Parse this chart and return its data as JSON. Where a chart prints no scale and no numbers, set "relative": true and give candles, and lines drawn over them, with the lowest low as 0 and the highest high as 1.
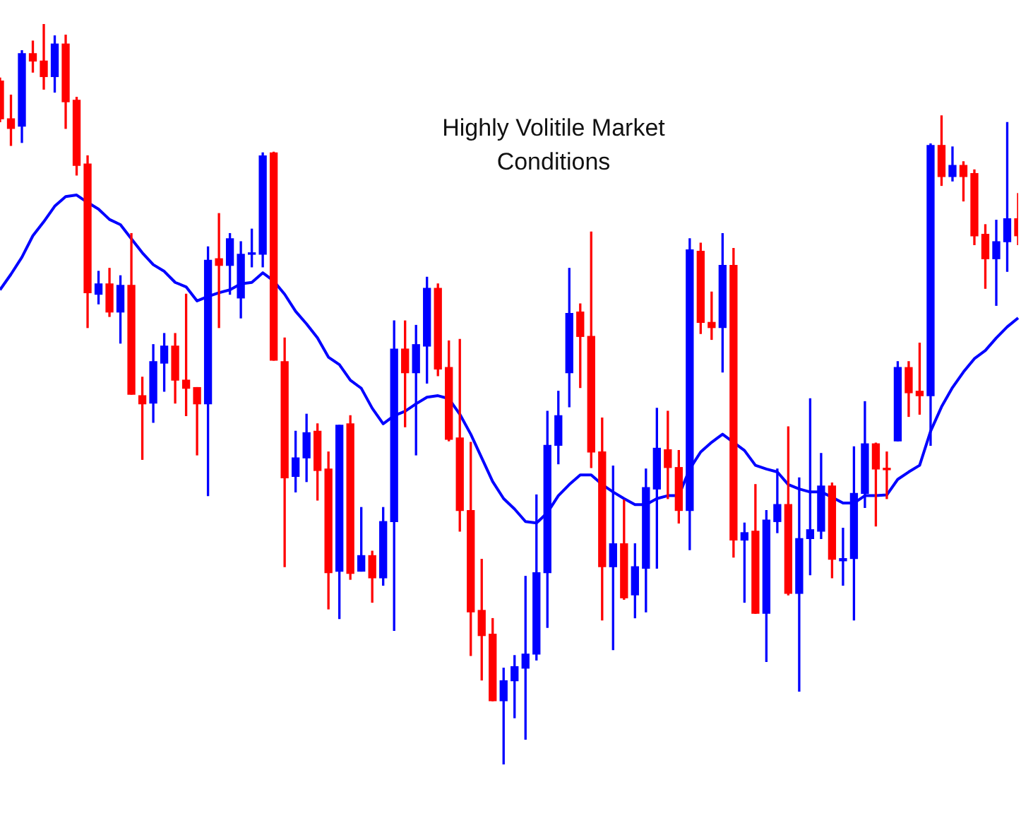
{
  "chart_data": {
    "type": "candlestick",
    "relative": true,
    "categories": [
      null,
      null,
      null,
      null,
      null,
      null,
      null,
      null,
      null,
      null,
      null,
      null,
      null,
      null,
      null,
      null,
      null,
      null,
      null,
      null,
      null,
      null,
      null,
      null,
      null,
      null,
      null,
      null,
      null,
      null,
      null,
      null,
      null,
      null,
      null,
      null,
      null,
      null,
      null,
      null,
      null,
      null,
      null,
      null,
      null,
      null,
      null,
      null,
      null,
      null,
      null,
      null,
      null,
      null,
      null,
      null,
      null,
      null,
      null,
      null,
      null,
      null,
      null,
      null,
      null,
      null,
      null,
      null,
      null,
      null,
      null,
      null,
      null,
      null,
      null,
      null,
      null,
      null,
      null,
      null,
      null,
      null,
      null,
      null,
      null,
      null,
      null,
      null,
      null,
      null,
      null,
      null,
      null,
      null
    ],
    "annotations": [
      "Highly Volitile Market Conditions"
    ],
    "ohlc": [
      [
        0.923,
        0.927,
        0.868,
        0.872
      ],
      [
        0.872,
        0.904,
        0.836,
        0.859
      ],
      [
        0.862,
        0.964,
        0.84,
        0.96
      ],
      [
        0.96,
        0.977,
        0.935,
        0.95
      ],
      [
        0.95,
        1,
        0.912,
        0.929
      ],
      [
        0.929,
        0.984,
        0.908,
        0.973
      ],
      [
        0.973,
        0.985,
        0.859,
        0.895
      ],
      [
        0.897,
        0.901,
        0.796,
        0.809
      ],
      [
        0.811,
        0.822,
        0.59,
        0.637
      ],
      [
        0.635,
        0.666,
        0.622,
        0.649
      ],
      [
        0.649,
        0.67,
        0.605,
        0.611
      ],
      [
        0.611,
        0.66,
        0.569,
        0.647
      ],
      [
        0.647,
        0.717,
        0.5,
        0.5
      ],
      [
        0.498,
        0.523,
        0.412,
        0.487
      ],
      [
        0.488,
        0.567,
        0.462,
        0.544
      ],
      [
        0.542,
        0.582,
        0.504,
        0.565
      ],
      [
        0.565,
        0.582,
        0.488,
        0.519
      ],
      [
        0.519,
        0.635,
        0.471,
        0.508
      ],
      [
        0.509,
        0.509,
        0.418,
        0.487
      ],
      [
        0.487,
        0.699,
        0.363,
        0.681
      ],
      [
        0.683,
        0.744,
        0.59,
        0.674
      ],
      [
        0.674,
        0.717,
        0.635,
        0.71
      ],
      [
        0.63,
        0.706,
        0.603,
        0.689
      ],
      [
        0.689,
        0.723,
        0.672,
        0.691
      ],
      [
        0.689,
        0.826,
        0.672,
        0.822
      ],
      [
        0.826,
        0.827,
        0.546,
        0.546
      ],
      [
        0.544,
        0.576,
        0.267,
        0.387
      ],
      [
        0.389,
        0.45,
        0.368,
        0.414
      ],
      [
        0.414,
        0.473,
        0.382,
        0.448
      ],
      [
        0.45,
        0.46,
        0.357,
        0.397
      ],
      [
        0.399,
        0.422,
        0.21,
        0.259
      ],
      [
        0.261,
        0.458,
        0.197,
        0.458
      ],
      [
        0.46,
        0.471,
        0.25,
        0.258
      ],
      [
        0.261,
        0.347,
        0.261,
        0.282
      ],
      [
        0.282,
        0.288,
        0.219,
        0.252
      ],
      [
        0.252,
        0.347,
        0.242,
        0.328
      ],
      [
        0.328,
        0.599,
        0.181,
        0.561
      ],
      [
        0.561,
        0.599,
        0.456,
        0.529
      ],
      [
        0.529,
        0.593,
        0.418,
        0.567
      ],
      [
        0.565,
        0.658,
        0.515,
        0.643
      ],
      [
        0.643,
        0.649,
        0.525,
        0.534
      ],
      [
        0.536,
        0.572,
        0.437,
        0.439
      ],
      [
        0.441,
        0.574,
        0.315,
        0.343
      ],
      [
        0.343,
        0.435,
        0.147,
        0.206
      ],
      [
        0.208,
        0.277,
        0.114,
        0.174
      ],
      [
        0.176,
        0.197,
        0.086,
        0.086
      ],
      [
        0.086,
        0.13,
        0,
        0.113
      ],
      [
        0.113,
        0.147,
        0.063,
        0.132
      ],
      [
        0.13,
        0.254,
        0.034,
        0.149
      ],
      [
        0.149,
        0.364,
        0.141,
        0.259
      ],
      [
        0.259,
        0.477,
        0.185,
        0.431
      ],
      [
        0.431,
        0.504,
        0.406,
        0.471
      ],
      [
        0.529,
        0.67,
        0.483,
        0.609
      ],
      [
        0.611,
        0.622,
        0.509,
        0.578
      ],
      [
        0.578,
        0.719,
        0.401,
        0.422
      ],
      [
        0.422,
        0.468,
        0.195,
        0.267
      ],
      [
        0.267,
        0.403,
        0.155,
        0.298
      ],
      [
        0.298,
        0.357,
        0.223,
        0.225
      ],
      [
        0.229,
        0.298,
        0.198,
        0.267
      ],
      [
        0.265,
        0.399,
        0.206,
        0.374
      ],
      [
        0.372,
        0.481,
        0.265,
        0.427
      ],
      [
        0.425,
        0.477,
        0.359,
        0.401
      ],
      [
        0.401,
        0.424,
        0.326,
        0.343
      ],
      [
        0.343,
        0.71,
        0.29,
        0.695
      ],
      [
        0.693,
        0.704,
        0.582,
        0.597
      ],
      [
        0.597,
        0.638,
        0.574,
        0.59
      ],
      [
        0.59,
        0.717,
        0.53,
        0.674
      ],
      [
        0.674,
        0.697,
        0.28,
        0.303
      ],
      [
        0.303,
        0.326,
        0.219,
        0.313
      ],
      [
        0.315,
        0.378,
        0.204,
        0.204
      ],
      [
        0.204,
        0.343,
        0.139,
        0.33
      ],
      [
        0.328,
        0.399,
        0.313,
        0.351
      ],
      [
        0.351,
        0.456,
        0.229,
        0.231
      ],
      [
        0.231,
        0.387,
        0.099,
        0.305
      ],
      [
        0.305,
        0.494,
        0.256,
        0.317
      ],
      [
        0.315,
        0.42,
        0.305,
        0.376
      ],
      [
        0.376,
        0.38,
        0.252,
        0.277
      ],
      [
        0.275,
        0.319,
        0.242,
        0.278
      ],
      [
        0.278,
        0.429,
        0.195,
        0.366
      ],
      [
        0.366,
        0.49,
        0.347,
        0.433
      ],
      [
        0.433,
        0.434,
        0.322,
        0.399
      ],
      [
        0.4,
        0.422,
        0.359,
        0.398
      ],
      [
        0.437,
        0.544,
        0.437,
        0.536
      ],
      [
        0.536,
        0.544,
        0.47,
        0.502
      ],
      [
        0.504,
        0.569,
        0.473,
        0.498
      ],
      [
        0.498,
        0.838,
        0.431,
        0.836
      ],
      [
        0.836,
        0.876,
        0.782,
        0.794
      ],
      [
        0.794,
        0.834,
        0.788,
        0.809
      ],
      [
        0.809,
        0.814,
        0.761,
        0.794
      ],
      [
        0.798,
        0.803,
        0.702,
        0.714
      ],
      [
        0.716,
        0.729,
        0.643,
        0.683
      ],
      [
        0.683,
        0.735,
        0.62,
        0.706
      ],
      [
        0.706,
        0.867,
        0.666,
        0.737
      ],
      [
        0.737,
        0.771,
        0.702,
        0.714
      ]
    ],
    "colors": [
      "#ff0000",
      "#ff0000",
      "#0000ff",
      "#ff0000",
      "#ff0000",
      "#0000ff",
      "#ff0000",
      "#ff0000",
      "#ff0000",
      "#0000ff",
      "#ff0000",
      "#0000ff",
      "#ff0000",
      "#ff0000",
      "#0000ff",
      "#0000ff",
      "#ff0000",
      "#ff0000",
      "#ff0000",
      "#0000ff",
      "#ff0000",
      "#0000ff",
      "#0000ff",
      "#0000ff",
      "#0000ff",
      "#ff0000",
      "#ff0000",
      "#0000ff",
      "#0000ff",
      "#ff0000",
      "#ff0000",
      "#0000ff",
      "#ff0000",
      "#0000ff",
      "#ff0000",
      "#0000ff",
      "#0000ff",
      "#ff0000",
      "#0000ff",
      "#0000ff",
      "#ff0000",
      "#ff0000",
      "#ff0000",
      "#ff0000",
      "#ff0000",
      "#ff0000",
      "#0000ff",
      "#0000ff",
      "#0000ff",
      "#0000ff",
      "#0000ff",
      "#0000ff",
      "#0000ff",
      "#ff0000",
      "#ff0000",
      "#ff0000",
      "#0000ff",
      "#ff0000",
      "#0000ff",
      "#0000ff",
      "#0000ff",
      "#ff0000",
      "#ff0000",
      "#0000ff",
      "#ff0000",
      "#ff0000",
      "#0000ff",
      "#ff0000",
      "#0000ff",
      "#ff0000",
      "#0000ff",
      "#0000ff",
      "#ff0000",
      "#0000ff",
      "#0000ff",
      "#0000ff",
      "#ff0000",
      "#0000ff",
      "#0000ff",
      "#0000ff",
      "#ff0000",
      "#ff0000",
      "#0000ff",
      "#ff0000",
      "#ff0000",
      "#0000ff",
      "#ff0000",
      "#0000ff",
      "#ff0000",
      "#ff0000",
      "#ff0000",
      "#0000ff",
      "#0000ff",
      "#ff0000"
    ],
    "series": [
      {
        "type": "line",
        "color": "#0000ff",
        "marker": "none",
        "values": [
          0.641,
          0.662,
          0.685,
          0.714,
          0.733,
          0.754,
          0.767,
          0.769,
          0.759,
          0.75,
          0.736,
          0.729,
          0.71,
          0.691,
          0.675,
          0.666,
          0.651,
          0.645,
          0.626,
          0.632,
          0.637,
          0.641,
          0.649,
          0.651,
          0.664,
          0.653,
          0.635,
          0.612,
          0.595,
          0.576,
          0.55,
          0.54,
          0.519,
          0.508,
          0.481,
          0.46,
          0.471,
          0.477,
          0.487,
          0.496,
          0.498,
          0.494,
          0.473,
          0.446,
          0.414,
          0.382,
          0.359,
          0.345,
          0.328,
          0.326,
          0.34,
          0.363,
          0.378,
          0.391,
          0.391,
          0.378,
          0.368,
          0.359,
          0.351,
          0.351,
          0.359,
          0.363,
          0.363,
          0.399,
          0.422,
          0.435,
          0.446,
          0.435,
          0.424,
          0.404,
          0.399,
          0.395,
          0.378,
          0.372,
          0.368,
          0.368,
          0.361,
          0.353,
          0.353,
          0.363,
          0.363,
          0.364,
          0.385,
          0.395,
          0.404,
          0.45,
          0.483,
          0.509,
          0.53,
          0.548,
          0.559,
          0.576,
          0.591,
          0.603
        ]
      }
    ]
  }
}
